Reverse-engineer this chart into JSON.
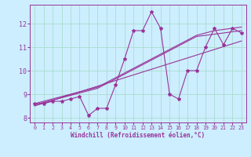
{
  "xlabel": "Windchill (Refroidissement éolien,°C)",
  "background_color": "#cceeff",
  "line_color": "#993399",
  "grid_color": "#aaddcc",
  "x_data": [
    0,
    1,
    2,
    3,
    4,
    5,
    6,
    7,
    8,
    9,
    10,
    11,
    12,
    13,
    14,
    15,
    16,
    17,
    18,
    19,
    20,
    21,
    22,
    23
  ],
  "y_main": [
    8.6,
    8.6,
    8.7,
    8.7,
    8.8,
    8.9,
    8.1,
    8.4,
    8.4,
    9.4,
    10.5,
    11.7,
    11.7,
    12.5,
    11.8,
    9.0,
    8.8,
    10.0,
    10.0,
    11.0,
    11.8,
    11.1,
    11.8,
    11.6
  ],
  "y_linear1": [
    8.55,
    8.65,
    8.75,
    8.85,
    8.95,
    9.05,
    9.15,
    9.25,
    9.45,
    9.65,
    9.85,
    10.05,
    10.25,
    10.45,
    10.65,
    10.85,
    11.05,
    11.25,
    11.45,
    11.5,
    11.55,
    11.6,
    11.65,
    11.7
  ],
  "y_linear2": [
    8.6,
    8.7,
    8.8,
    8.9,
    9.0,
    9.1,
    9.2,
    9.3,
    9.5,
    9.7,
    9.9,
    10.1,
    10.3,
    10.5,
    10.7,
    10.9,
    11.1,
    11.3,
    11.5,
    11.6,
    11.7,
    11.75,
    11.8,
    11.85
  ],
  "y_linear3": [
    8.5,
    8.62,
    8.74,
    8.86,
    8.98,
    9.1,
    9.22,
    9.34,
    9.46,
    9.58,
    9.7,
    9.82,
    9.94,
    10.06,
    10.18,
    10.3,
    10.42,
    10.54,
    10.66,
    10.78,
    10.9,
    11.02,
    11.14,
    11.26
  ],
  "ylim": [
    7.8,
    12.8
  ],
  "xlim": [
    -0.5,
    23.5
  ],
  "yticks": [
    8,
    9,
    10,
    11,
    12
  ],
  "xticks": [
    0,
    1,
    2,
    3,
    4,
    5,
    6,
    7,
    8,
    9,
    10,
    11,
    12,
    13,
    14,
    15,
    16,
    17,
    18,
    19,
    20,
    21,
    22,
    23
  ]
}
